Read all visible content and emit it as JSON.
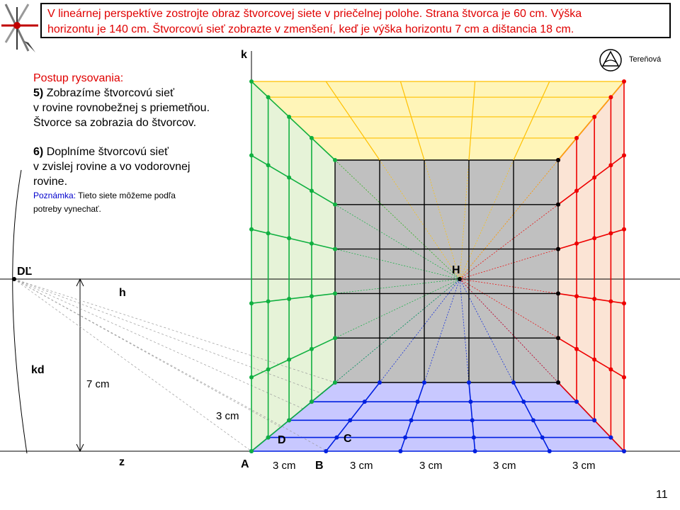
{
  "task": {
    "line1": "V lineárnej perspektíve zostrojte obraz štvorcovej siete v priečelnej polohe. Strana štvorca je 60 cm. Výška",
    "line2": "horizontu je 140 cm. Štvorcovú sieť zobrazte v zmenšení, keď je výška horizontu 7 cm a dištancia 18 cm."
  },
  "author": "Tereňová",
  "steps": {
    "title": "Postup rysovania:",
    "step5_num": "5)",
    "step5_l1": "Zobrazíme štvorcovú sieť",
    "step5_l2": "v rovine rovnobežnej s priemetňou.",
    "step5_l3": "Štvorce sa zobrazia do štvorcov.",
    "step6_num": "6)",
    "step6_l1": "Doplníme štvorcovú sieť",
    "step6_l2": "v zvislej rovine a vo vodorovnej",
    "step6_l3": "rovine.",
    "note_label": "Poznámka:",
    "note_l1": "Tieto siete môžeme podľa",
    "note_l2": "potreby vynechať."
  },
  "labels": {
    "k": "k",
    "h": "h",
    "z": "z",
    "H": "H",
    "D_prime": "DĽ",
    "k_d": "kd",
    "A": "A",
    "B": "B",
    "C": "C",
    "D": "D",
    "height": "7 cm",
    "side": "3 cm",
    "base": [
      "3 cm",
      "3 cm",
      "3 cm",
      "3 cm",
      "3 cm"
    ]
  },
  "colors": {
    "title_red": "#e00000",
    "front": "#c0c0c0",
    "ceiling": "#fff5b8",
    "ceiling_line": "#ffc000",
    "floor": "#c8c8ff",
    "floor_line": "#0020e0",
    "left_wall": "#e6f3d8",
    "left_line": "#10b040",
    "right_wall": "#fbe4d5",
    "right_line": "#ee0000",
    "note_blue": "#0000cc"
  },
  "page_number": "11"
}
